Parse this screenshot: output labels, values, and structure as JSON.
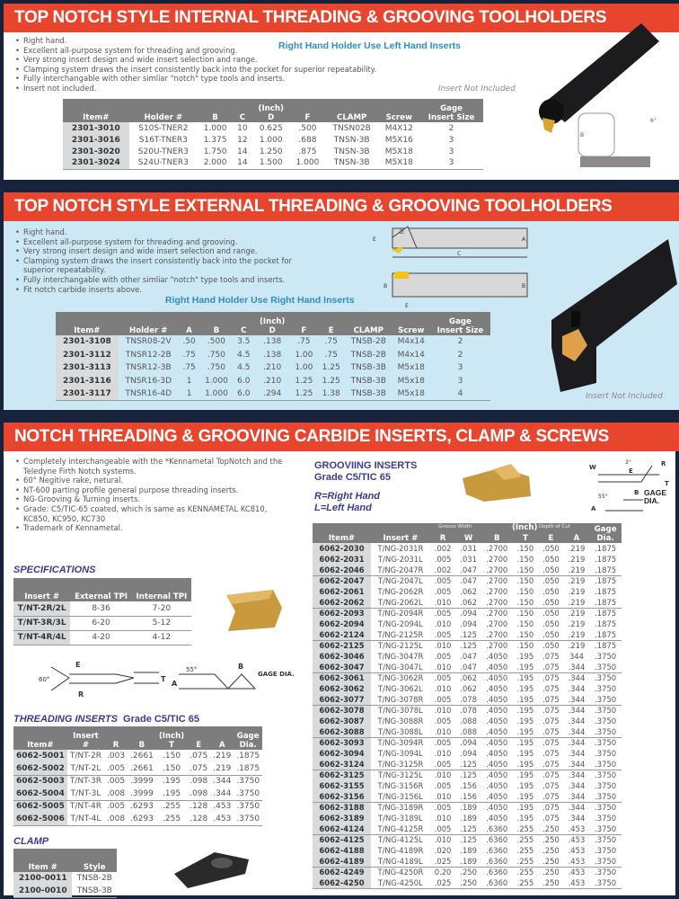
{
  "colors": {
    "header_red": "#e8452f",
    "background_navy": "#16233b",
    "panel_blue": "#cde8f5",
    "note_blue": "#2b8fc7",
    "table_header": "#7d7d7d",
    "title_purple": "#3b3b96"
  },
  "internal": {
    "title": "TOP NOTCH STYLE INTERNAL THREADING & GROOVING TOOLHOLDERS",
    "bullets": [
      "Right hand.",
      "Excellent all-purpose system for threading and grooving.",
      "Very strong insert design and wide insert selection and range.",
      "Clamping system draws the insert consistently back into the pocket for superior repeatability.",
      "Fully interchangable with other simliar \"notch\" type tools and inserts.",
      "Insert not included."
    ],
    "note": "Right Hand Holder Use Left Hand Inserts",
    "insert_note": "Insert Not Included",
    "table": {
      "headers": [
        "Item#",
        "Holder #",
        "B",
        "C",
        "(Inch)\nD",
        "F",
        "CLAMP",
        "Screw",
        "Gage\nInsert Size"
      ],
      "rows": [
        [
          "2301-3010",
          "S10S-TNER2",
          "1.000",
          "10",
          "0.625",
          ".500",
          "TNSN02B",
          "M4X12",
          "2"
        ],
        [
          "2301-3016",
          "S16T-TNER3",
          "1.375",
          "12",
          "1.000",
          ".688",
          "TNSN-3B",
          "M5X16",
          "3"
        ],
        [
          "2301-3020",
          "S20U-TNER3",
          "1.750",
          "14",
          "1.250",
          ".875",
          "TNSN-3B",
          "M5X18",
          "3"
        ],
        [
          "2301-3024",
          "S24U-TNER3",
          "2.000",
          "14",
          "1.500",
          "1.000",
          "TNSN-3B",
          "M5X18",
          "3"
        ]
      ]
    },
    "diagram_labels": [
      "B",
      "6°"
    ]
  },
  "external": {
    "title": "TOP NOTCH STYLE EXTERNAL THREADING & GROOVING TOOLHOLDERS",
    "bullets": [
      "Right hand.",
      "Excellent all-purpose system for threading and grooving.",
      "Very strong insert design and wide insert selection and range.",
      "Clamping system draws the insert consistently back into the pocket for superior repeatability.",
      "Fully interchangable with other simliar \"notch\" type tools and inserts.",
      "Fit notch carbide inserts above."
    ],
    "note": "Right Hand Holder Use Right Hand Inserts",
    "insert_note": "Insert Not Included",
    "table": {
      "headers": [
        "Item#",
        "Holder #",
        "A",
        "B",
        "C",
        "(Inch)\nD",
        "F",
        "E",
        "CLAMP",
        "Screw",
        "Gage\nInsert Size"
      ],
      "rows": [
        [
          "2301-3108",
          "TNSR08-2V",
          ".50",
          ".500",
          "3.5",
          ".138",
          ".75",
          ".75",
          "TNSB-2B",
          "M4x14",
          "2"
        ],
        [
          "2301-3112",
          "TNSR12-2B",
          ".75",
          ".750",
          "4.5",
          ".138",
          "1.00",
          ".75",
          "TNSB-2B",
          "M4x14",
          "2"
        ],
        [
          "2301-3113",
          "TNSR12-3B",
          ".75",
          ".750",
          "4.5",
          ".210",
          "1.00",
          "1.25",
          "TNSB-3B",
          "M5x18",
          "3"
        ],
        [
          "2301-3116",
          "TNSR16-3D",
          "1",
          "1.000",
          "6.0",
          ".210",
          "1.25",
          "1.25",
          "TNSB-3B",
          "M5x18",
          "3"
        ],
        [
          "2301-3117",
          "TNSR16-4D",
          "1",
          "1.000",
          "6.0",
          ".294",
          "1.25",
          "1.38",
          "TNSB-3B",
          "M5x18",
          "4"
        ]
      ]
    },
    "diagram_labels": [
      "E",
      "D",
      "A",
      "C",
      "B",
      "B",
      "E"
    ]
  },
  "inserts": {
    "title": "NOTCH THREADING & GROOVING CARBIDE INSERTS, CLAMP & SCREWS",
    "bullets": [
      "Completely interchangeable with the *Kennametal TopNotch and the Teledyne Firth Notch systems.",
      "60° Negitive rake, netural.",
      "NT-600 parting profile general purpose threading inserts.",
      "NG-Grooving & Turning inserts.",
      "Grade: C5/TIC-65 coated, which is same as KENNAMETAL KC810, KC850, KC950, KC730",
      "Trademark of Kennametal."
    ],
    "specs": {
      "title": "SPECIFICATIONS",
      "headers": [
        "Insert #",
        "External TPI",
        "Internal TPI"
      ],
      "rows": [
        [
          "T/NT-2R/2L",
          "8-36",
          "7-20"
        ],
        [
          "T/NT-3R/3L",
          "6-20",
          "5-12"
        ],
        [
          "T/NT-4R/4L",
          "4-20",
          "4-12"
        ]
      ]
    },
    "thread_diagram_labels": {
      "e": "E",
      "angle": "60°",
      "r": "R",
      "t": "T",
      "angle2": "55°",
      "b": "B",
      "a": "A",
      "gage": "GAGE\nDIA."
    },
    "threading": {
      "title": "THREADING INSERTS",
      "grade": "Grade C5/TIC 65",
      "headers": [
        "Item#",
        "Insert #",
        "R",
        "B",
        "(Inch)\nT",
        "E",
        "A",
        "Gage\nDia."
      ],
      "rows": [
        [
          "6062-5001",
          "T/NT-2R",
          ".003",
          ".2661",
          ".150",
          ".075",
          ".219",
          ".1875"
        ],
        [
          "6062-5002",
          "T/NT-2L",
          ".005",
          ".2661",
          ".150",
          ".075",
          ".219",
          ".1875"
        ],
        [
          "6062-5003",
          "T/NT-3R",
          ".005",
          ".3999",
          ".195",
          ".098",
          ".344",
          ".3750"
        ],
        [
          "6062-5004",
          "T/NT-3L",
          ".008",
          ".3999",
          ".195",
          ".098",
          ".344",
          ".3750"
        ],
        [
          "6062-5005",
          "T/NT-4R",
          ".005",
          ".6293",
          ".255",
          ".128",
          ".453",
          ".3750"
        ],
        [
          "6062-5006",
          "T/NT-4L",
          ".008",
          ".6293",
          ".255",
          ".128",
          ".453",
          ".3750"
        ]
      ]
    },
    "clamp": {
      "title": "CLAMP",
      "headers": [
        "Item #",
        "Style"
      ],
      "rows": [
        [
          "2100-0011",
          "TNSB-2B"
        ],
        [
          "2100-0010",
          "TNSB-3B"
        ]
      ]
    },
    "grooving": {
      "title": "GROOVIING INSERTS",
      "grade": "Grade C5/TIC 65",
      "legend_r": "R=Right Hand",
      "legend_l": "L=Left Hand",
      "diagram_labels": {
        "w": "W",
        "angle": "3°",
        "e": "E",
        "r": "R",
        "t": "T",
        "angle2": "55°",
        "b": "B",
        "a": "A",
        "gage": "GAGE\nDIA."
      },
      "group_groove": "Groove Width",
      "group_inch": "(Inch)",
      "group_depth": "Depth of Cut",
      "headers": [
        "Item#",
        "Insert #",
        "R",
        "W",
        "B",
        "T",
        "E",
        "A",
        "Gage\nDia."
      ],
      "rows": [
        [
          "6062-2030",
          "T/NG-2031R",
          ".002",
          ".031",
          ".2700",
          ".150",
          ".050",
          ".219",
          ".1875"
        ],
        [
          "6062-2031",
          "T/NG-2031L",
          ".005",
          ".031",
          ".2700",
          ".150",
          ".050",
          ".219",
          ".1875"
        ],
        [
          "6062-2046",
          "T/NG-2047R",
          ".002",
          ".047",
          ".2700",
          ".150",
          ".050",
          ".219",
          ".1875"
        ],
        [
          "6062-2047",
          "T/NG-2047L",
          ".005",
          ".047",
          ".2700",
          ".150",
          ".050",
          ".219",
          ".1875"
        ],
        [
          "6062-2061",
          "T/NG-2062R",
          ".005",
          ".062",
          ".2700",
          ".150",
          ".050",
          ".219",
          ".1875"
        ],
        [
          "6062-2062",
          "T/NG-2062L",
          ".010",
          ".062",
          ".2700",
          ".150",
          ".050",
          ".219",
          ".1875"
        ],
        [
          "6062-2093",
          "T/NG-2094R",
          ".005",
          ".094",
          ".2700",
          ".150",
          ".050",
          ".219",
          ".1875"
        ],
        [
          "6062-2094",
          "T/NG-2094L",
          ".010",
          ".094",
          ".2700",
          ".150",
          ".050",
          ".219",
          ".1875"
        ],
        [
          "6062-2124",
          "T/NG-2125R",
          ".005",
          ".125",
          ".2700",
          ".150",
          ".050",
          ".219",
          ".1875"
        ],
        [
          "6062-2125",
          "T/NG-2125L",
          ".010",
          ".125",
          ".2700",
          ".150",
          ".050",
          ".219",
          ".1875"
        ],
        [
          "6062-3046",
          "T/NG-3047R",
          ".005",
          ".047",
          ".4050",
          ".195",
          ".075",
          "344",
          ".3750"
        ],
        [
          "6062-3047",
          "T/NG-3047L",
          ".010",
          ".047",
          ".4050",
          ".195",
          ".075",
          ".344",
          ".3750"
        ],
        [
          "6062-3061",
          "T/NG-3062R",
          ".005",
          ".062",
          ".4050",
          ".195",
          ".075",
          ".344",
          ".3750"
        ],
        [
          "6062-3062",
          "T/NG-3062L",
          ".010",
          ".062",
          ".4050",
          ".195",
          ".075",
          ".344",
          ".3750"
        ],
        [
          "6062-3077",
          "T/NG-3078R",
          ".005",
          ".078",
          ".4050",
          ".195",
          ".075",
          ".344",
          ".3750"
        ],
        [
          "6062-3078",
          "T/NG-3078L",
          ".010",
          ".078",
          ".4050",
          ".195",
          ".075",
          ".344",
          ".3750"
        ],
        [
          "6062-3087",
          "T/NG-3088R",
          ".005",
          ".088",
          ".4050",
          ".195",
          ".075",
          ".344",
          ".3750"
        ],
        [
          "6062-3088",
          "T/NG-3088L",
          ".010",
          ".088",
          ".4050",
          ".195",
          ".075",
          ".344",
          ".3750"
        ],
        [
          "6062-3093",
          "T/NG-3094R",
          ".005",
          ".094",
          ".4050",
          ".195",
          ".075",
          ".344",
          ".3750"
        ],
        [
          "6062-3094",
          "T/NG-3094L",
          ".010",
          ".094",
          ".4050",
          ".195",
          ".075",
          ".344",
          ".3750"
        ],
        [
          "6062-3124",
          "T/NG-3125R",
          ".005",
          ".125",
          ".4050",
          ".195",
          ".075",
          ".344",
          ".3750"
        ],
        [
          "6062-3125",
          "T/NG-3125L",
          ".010",
          ".125",
          ".4050",
          ".195",
          ".075",
          ".344",
          ".3750"
        ],
        [
          "6062-3155",
          "T/NG-3156R",
          ".005",
          ".156",
          ".4050",
          ".195",
          ".075",
          ".344",
          ".3750"
        ],
        [
          "6062-3156",
          "T/NG-3156L",
          ".010",
          ".156",
          ".4050",
          ".195",
          ".075",
          ".344",
          ".3750"
        ],
        [
          "6062-3188",
          "T/NG-3189R",
          ".005",
          ".189",
          ".4050",
          ".195",
          ".075",
          ".344",
          ".3750"
        ],
        [
          "6062-3189",
          "T/NG-3189L",
          ".010",
          ".189",
          ".4050",
          ".195",
          ".075",
          ".344",
          ".3750"
        ],
        [
          "6062-4124",
          "T/NG-4125R",
          ".005",
          ".125",
          ".6360",
          ".255",
          ".250",
          ".453",
          ".3750"
        ],
        [
          "6062-4125",
          "T/NG-4125L",
          ".010",
          ".125",
          ".6360",
          ".255",
          ".250",
          ".453",
          ".3750"
        ],
        [
          "6062-4188",
          "T/NG-4189R",
          ".020",
          ".189",
          ".6360",
          ".255",
          ".250",
          ".453",
          ".3750"
        ],
        [
          "6062-4189",
          "T/NG-4189L",
          ".025",
          ".189",
          ".6360",
          ".255",
          ".250",
          ".453",
          ".3750"
        ],
        [
          "6062-4249",
          "T/NG-4250R",
          "0.20",
          ".250",
          ".6360",
          ".255",
          ".250",
          ".453",
          ".3750"
        ],
        [
          "6062-4250",
          "T/NG-4250L",
          ".025",
          ".250",
          ".6360",
          ".255",
          ".250",
          ".453",
          ".3750"
        ]
      ]
    }
  }
}
